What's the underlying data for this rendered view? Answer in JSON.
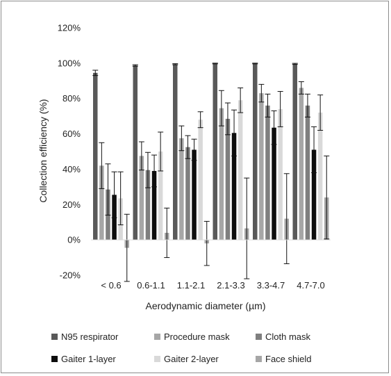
{
  "chart_data": {
    "type": "bar",
    "title": "",
    "xlabel": "Aerodynamic diameter (µm)",
    "ylabel": "Collection efficiency (%)",
    "ylim": [
      -20,
      120
    ],
    "yticks": [
      -20,
      0,
      20,
      40,
      60,
      80,
      100,
      120
    ],
    "ytick_labels": [
      "-20%",
      "0%",
      "20%",
      "40%",
      "60%",
      "80%",
      "100%",
      "120%"
    ],
    "grid": false,
    "legend_position": "bottom",
    "categories": [
      "< 0.6",
      "0.6-1.1",
      "1.1-2.1",
      "2.1-3.3",
      "3.3-4.7",
      "4.7-7.0"
    ],
    "series": [
      {
        "name": "N95 respirator",
        "color": "#595959",
        "values": [
          94.5,
          98.7,
          99.4,
          99.8,
          99.8,
          99.6
        ],
        "err": [
          1.5,
          0.4,
          0.3,
          0.2,
          0.2,
          0.3
        ]
      },
      {
        "name": "Procedure mask",
        "color": "#a6a6a6",
        "values": [
          42,
          47.5,
          57.5,
          74.5,
          83,
          86
        ],
        "err": [
          13,
          8,
          7,
          10,
          5,
          3.5
        ]
      },
      {
        "name": "Cloth mask",
        "color": "#7f7f7f",
        "values": [
          28.5,
          39.5,
          52.5,
          68.5,
          76,
          76
        ],
        "err": [
          14.5,
          10,
          6.5,
          9,
          6.5,
          6.5
        ]
      },
      {
        "name": "Gaiter 1-layer",
        "color": "#0d0d0d",
        "values": [
          25.5,
          39,
          51,
          60.5,
          63.5,
          51
        ],
        "err": [
          13,
          9,
          6,
          13,
          9.5,
          13
        ]
      },
      {
        "name": "Gaiter 2-layer",
        "color": "#d9d9d9",
        "values": [
          23.5,
          50,
          68,
          79,
          74,
          72
        ],
        "err": [
          15,
          11,
          4.5,
          7,
          10,
          10
        ]
      },
      {
        "name": "Face shield",
        "color": "#a6a6a6",
        "values": [
          -4.5,
          4,
          -2,
          6.5,
          12,
          24
        ],
        "err": [
          19,
          14,
          12.5,
          28.5,
          25.5,
          23.5
        ]
      }
    ]
  }
}
